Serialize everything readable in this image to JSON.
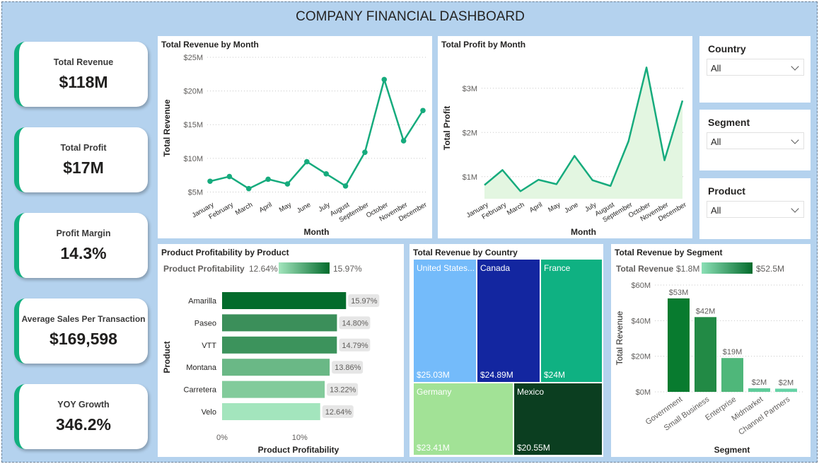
{
  "dashboard": {
    "title": "COMPANY FINANCIAL DASHBOARD"
  },
  "colors": {
    "background": "#b4d2ee",
    "accent": "#11b07f",
    "line": "#16ab7d"
  },
  "kpis": [
    {
      "label": "Total Revenue",
      "value": "$118M"
    },
    {
      "label": "Total Profit",
      "value": "$17M"
    },
    {
      "label": "Profit Margin",
      "value": "14.3%"
    },
    {
      "label": "Average Sales Per Transaction",
      "value": "$169,598"
    },
    {
      "label": "YOY Growth",
      "value": "346.2%"
    }
  ],
  "slicers": [
    {
      "title": "Country",
      "value": "All"
    },
    {
      "title": "Segment",
      "value": "All"
    },
    {
      "title": "Product",
      "value": "All"
    }
  ],
  "chart_data": [
    {
      "type": "line",
      "title": "Total Revenue by Month",
      "xlabel": "Month",
      "ylabel": "Total Revenue",
      "categories": [
        "January",
        "February",
        "March",
        "April",
        "May",
        "June",
        "July",
        "August",
        "September",
        "October",
        "November",
        "December"
      ],
      "values": [
        6.6,
        7.3,
        5.5,
        6.9,
        6.2,
        9.5,
        7.7,
        5.9,
        10.9,
        21.7,
        12.6,
        17.1
      ],
      "y_ticks": [
        "$5M",
        "$10M",
        "$15M",
        "$20M",
        "$25M"
      ],
      "ylim": [
        4,
        25
      ],
      "markers": true
    },
    {
      "type": "area",
      "title": "Total Profit by Month",
      "xlabel": "Month",
      "ylabel": "Total Profit",
      "categories": [
        "January",
        "February",
        "March",
        "April",
        "May",
        "June",
        "July",
        "August",
        "September",
        "October",
        "November",
        "December"
      ],
      "values": [
        0.81,
        1.15,
        0.67,
        0.93,
        0.83,
        1.47,
        0.92,
        0.79,
        1.8,
        3.47,
        1.37,
        2.72
      ],
      "y_ticks": [
        "$1M",
        "$2M",
        "$3M"
      ],
      "ylim": [
        0.5,
        3.7
      ]
    },
    {
      "type": "bar",
      "orientation": "horizontal",
      "title": "Product Profitability by Product",
      "xlabel": "Product Profitability",
      "ylabel": "Product",
      "legend": {
        "label": "Product Profitability",
        "min": "12.64%",
        "max": "15.97%"
      },
      "categories": [
        "Amarilla",
        "Paseo",
        "VTT",
        "Montana",
        "Carretera",
        "Velo"
      ],
      "values": [
        15.97,
        14.8,
        14.79,
        13.86,
        13.22,
        12.64
      ],
      "data_labels": [
        "15.97%",
        "14.80%",
        "14.79%",
        "13.86%",
        "13.22%",
        "12.64%"
      ],
      "x_ticks": [
        "0%",
        "10%"
      ],
      "xlim": [
        0,
        20.5
      ]
    },
    {
      "type": "treemap",
      "title": "Total Revenue by Country",
      "categories": [
        "United States...",
        "Canada",
        "France",
        "Germany",
        "Mexico"
      ],
      "values": [
        25.03,
        24.89,
        24,
        23.41,
        20.55
      ],
      "data_labels": [
        "$25.03M",
        "$24.89M",
        "$24M",
        "$23.41M",
        "$20.55M"
      ]
    },
    {
      "type": "bar",
      "title": "Total Revenue by Segment",
      "xlabel": "Segment",
      "ylabel": "Total Revenue",
      "legend": {
        "label": "Total Revenue",
        "min": "$1.8M",
        "max": "$52.5M"
      },
      "categories": [
        "Government",
        "Small Business",
        "Enterprise",
        "Midmarket",
        "Channel Partners"
      ],
      "values": [
        52.5,
        42,
        19,
        2,
        1.8
      ],
      "data_labels": [
        "$53M",
        "$42M",
        "$19M",
        "$2M",
        "$2M"
      ],
      "y_ticks": [
        "$0M",
        "$20M",
        "$40M",
        "$60M"
      ],
      "ylim": [
        0,
        60
      ]
    }
  ]
}
